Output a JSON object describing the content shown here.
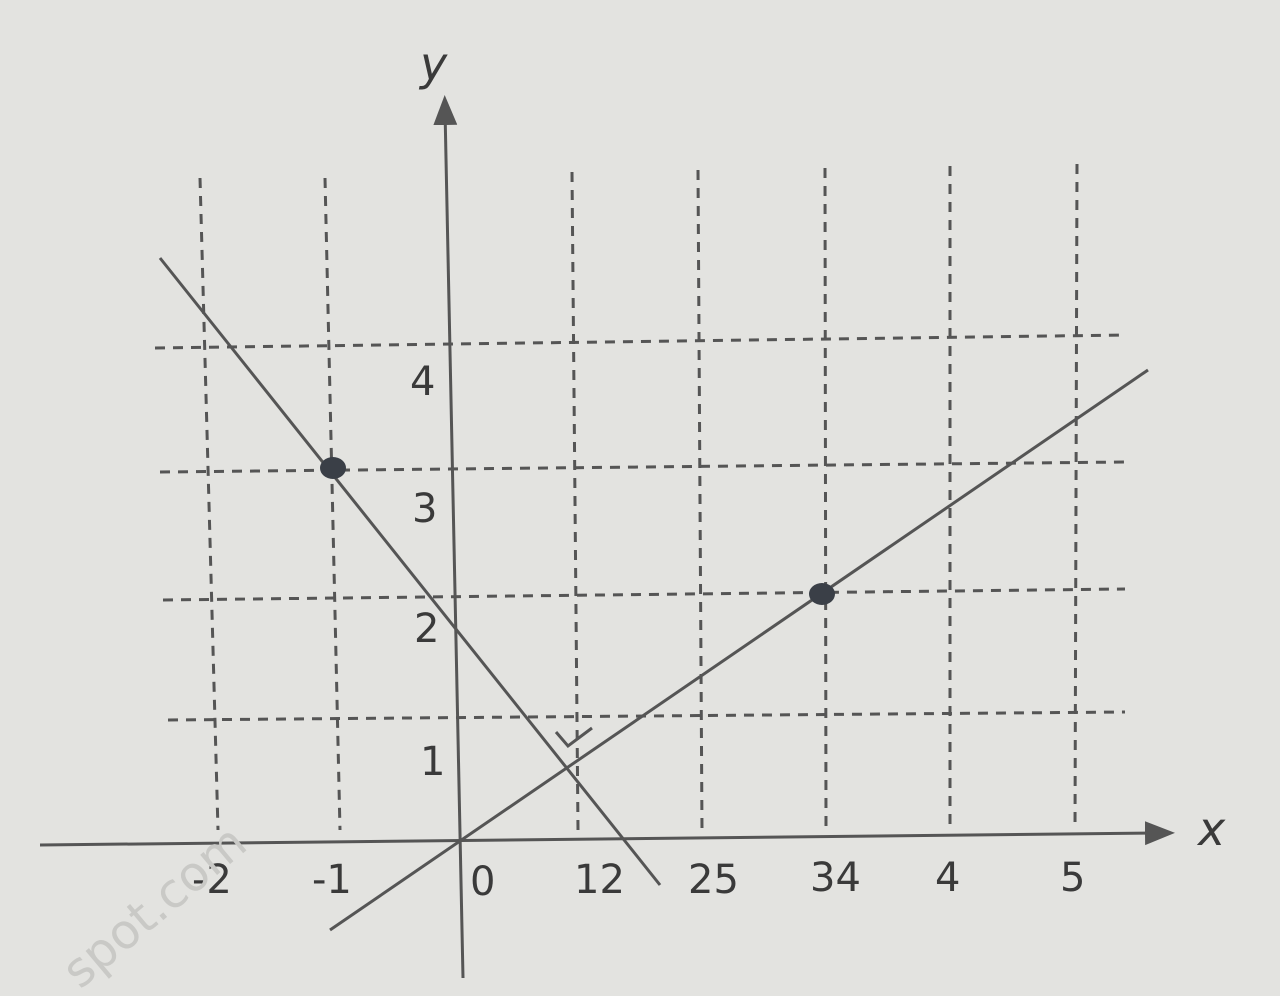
{
  "axes": {
    "x_label": "x",
    "y_label": "y"
  },
  "x_tick_labels": [
    "-2",
    "-1",
    "0",
    "12",
    "25",
    "34",
    "4",
    "5"
  ],
  "y_tick_labels": [
    "1",
    "2",
    "3",
    "4"
  ],
  "watermark": "spot.com"
}
